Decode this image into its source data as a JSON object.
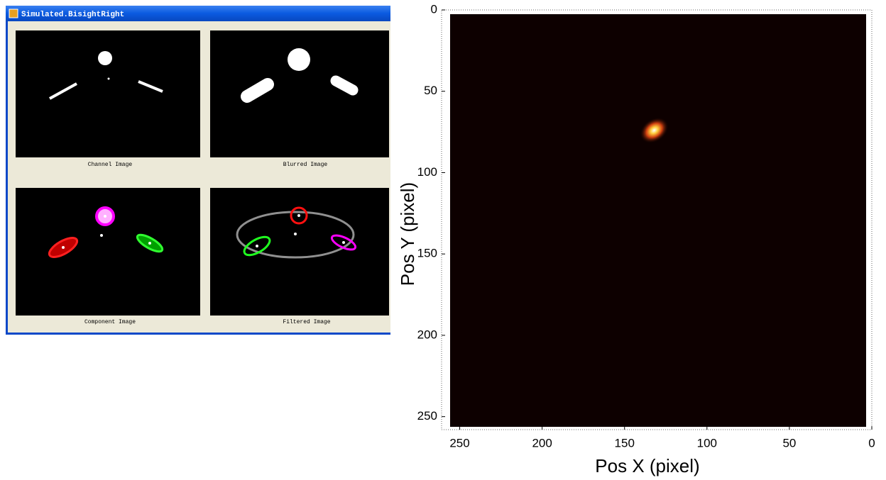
{
  "window": {
    "title": "Simulated.BisightRight",
    "panels": [
      "Channel Image",
      "Blurred Image",
      "Component Image",
      "Filtered Image"
    ]
  },
  "chart_data": {
    "type": "heatmap",
    "xlabel": "Pos X (pixel)",
    "ylabel": "Pos Y (pixel)",
    "x": [
      132
    ],
    "y": [
      74
    ],
    "xlim": [
      261,
      0
    ],
    "xticks": [
      250,
      200,
      150,
      100,
      50,
      0
    ],
    "ylim": [
      0,
      258
    ],
    "yticks": [
      0,
      50,
      100,
      150,
      200,
      250
    ]
  }
}
